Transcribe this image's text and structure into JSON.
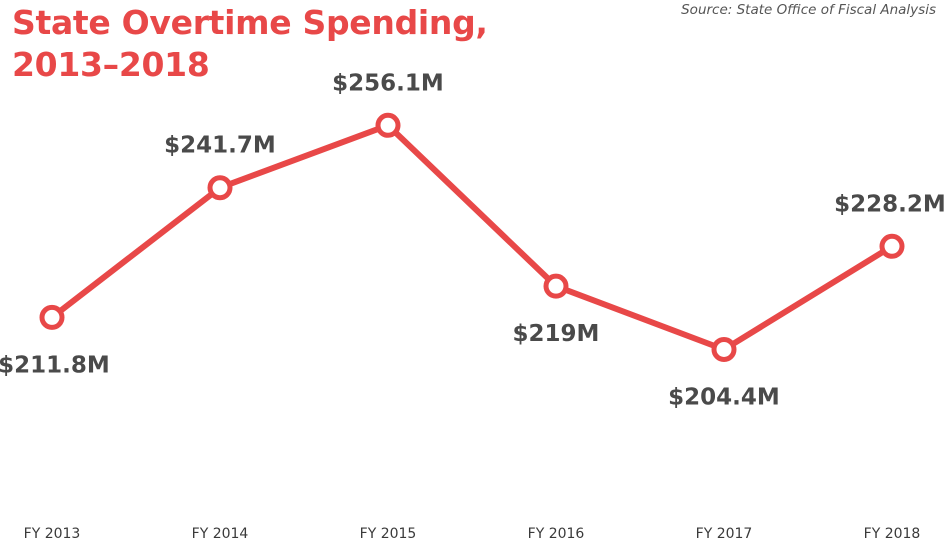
{
  "title": "State Overtime Spending, 2013–2018",
  "source": "Source: State Office of Fiscal Analysis",
  "chart_data": {
    "type": "line",
    "title": "State Overtime Spending, 2013–2018",
    "xlabel": "",
    "ylabel": "",
    "categories": [
      "FY 2013",
      "FY 2014",
      "FY 2015",
      "FY 2016",
      "FY 2017",
      "FY 2018"
    ],
    "values": [
      211.8,
      241.7,
      256.1,
      219.0,
      204.4,
      228.2
    ],
    "data_labels": [
      "$211.8M",
      "$241.7M",
      "$256.1M",
      "$219M",
      "$204.4M",
      "$228.2M"
    ],
    "label_positions": [
      "below",
      "above",
      "above",
      "below",
      "below",
      "above"
    ],
    "ylim": [
      160,
      285
    ],
    "grid": false,
    "legend": "none",
    "line_color": "#e84848",
    "marker_fill": "#ffffff"
  }
}
